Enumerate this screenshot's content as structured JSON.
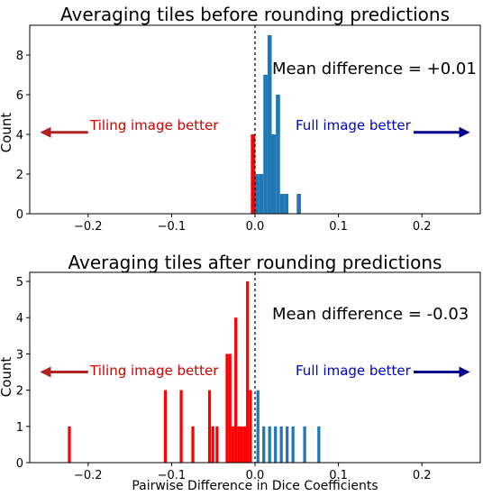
{
  "figure": {
    "xlabel": "Pairwise Difference in Dice Coefficients"
  },
  "colors": {
    "negative": "#ff0000",
    "positive": "#1f77b4",
    "tiling_text": "#cc0000",
    "full_text": "#0000cc",
    "tiling_arrow": "#b22222",
    "full_arrow": "#00008b"
  },
  "chart_data": [
    {
      "type": "bar",
      "title": "Averaging tiles before rounding predictions",
      "ylabel": "Count",
      "xlim": [
        -0.27,
        0.27
      ],
      "ylim": [
        0,
        9.5
      ],
      "xticks": [
        -0.2,
        -0.1,
        0.0,
        0.1,
        0.2
      ],
      "xtick_labels": [
        "−0.2",
        "−0.1",
        "0.0",
        "0.1",
        "0.2"
      ],
      "yticks": [
        0,
        2,
        4,
        6,
        8
      ],
      "ytick_labels": [
        "0",
        "2",
        "4",
        "6",
        "8"
      ],
      "bin_width": 0.005,
      "bars": [
        {
          "x": -0.0025,
          "count": 4,
          "side": "negative"
        },
        {
          "x": 0.0025,
          "count": 2,
          "side": "positive"
        },
        {
          "x": 0.0075,
          "count": 2,
          "side": "positive"
        },
        {
          "x": 0.0125,
          "count": 7,
          "side": "positive"
        },
        {
          "x": 0.0175,
          "count": 9,
          "side": "positive"
        },
        {
          "x": 0.0225,
          "count": 4,
          "side": "positive"
        },
        {
          "x": 0.0275,
          "count": 6,
          "side": "positive"
        },
        {
          "x": 0.0325,
          "count": 1,
          "side": "positive"
        },
        {
          "x": 0.0375,
          "count": 1,
          "side": "positive"
        },
        {
          "x": 0.0525,
          "count": 1,
          "side": "positive"
        }
      ],
      "annotation": "Mean difference = +0.01",
      "tiling_label": "Tiling image better",
      "full_label": "Full image better",
      "arrow_y": 4.1,
      "tiling_arrow_x": [
        -0.2,
        -0.255
      ],
      "full_arrow_x": [
        0.19,
        0.255
      ]
    },
    {
      "type": "bar",
      "title": "Averaging tiles after rounding predictions",
      "ylabel": "Count",
      "xlabel": "Pairwise Difference in Dice Coefficients",
      "xlim": [
        -0.27,
        0.27
      ],
      "ylim": [
        0,
        5.25
      ],
      "xticks": [
        -0.2,
        -0.1,
        0.0,
        0.1,
        0.2
      ],
      "xtick_labels": [
        "−0.2",
        "−0.1",
        "0.0",
        "0.1",
        "0.2"
      ],
      "yticks": [
        0,
        1,
        2,
        3,
        4,
        5
      ],
      "ytick_labels": [
        "0",
        "1",
        "2",
        "3",
        "4",
        "5"
      ],
      "bin_width": 0.0035,
      "bars": [
        {
          "x": -0.2225,
          "count": 1,
          "side": "negative"
        },
        {
          "x": -0.1075,
          "count": 2,
          "side": "negative"
        },
        {
          "x": -0.0885,
          "count": 2,
          "side": "negative"
        },
        {
          "x": -0.0745,
          "count": 1,
          "side": "negative"
        },
        {
          "x": -0.0545,
          "count": 2,
          "side": "negative"
        },
        {
          "x": -0.0505,
          "count": 1,
          "side": "negative"
        },
        {
          "x": -0.0455,
          "count": 1,
          "side": "negative"
        },
        {
          "x": -0.0335,
          "count": 3,
          "side": "negative"
        },
        {
          "x": -0.03,
          "count": 3,
          "side": "negative"
        },
        {
          "x": -0.0265,
          "count": 1,
          "side": "negative"
        },
        {
          "x": -0.023,
          "count": 4,
          "side": "negative"
        },
        {
          "x": -0.0195,
          "count": 1,
          "side": "negative"
        },
        {
          "x": -0.016,
          "count": 1,
          "side": "negative"
        },
        {
          "x": -0.0125,
          "count": 1,
          "side": "negative"
        },
        {
          "x": -0.009,
          "count": 5,
          "side": "negative"
        },
        {
          "x": -0.0055,
          "count": 2,
          "side": "negative"
        },
        {
          "x": 0.0035,
          "count": 2,
          "side": "positive"
        },
        {
          "x": 0.0105,
          "count": 1,
          "side": "positive"
        },
        {
          "x": 0.0175,
          "count": 1,
          "side": "positive"
        },
        {
          "x": 0.0245,
          "count": 1,
          "side": "positive"
        },
        {
          "x": 0.0315,
          "count": 1,
          "side": "positive"
        },
        {
          "x": 0.0385,
          "count": 1,
          "side": "positive"
        },
        {
          "x": 0.0455,
          "count": 1,
          "side": "positive"
        },
        {
          "x": 0.0595,
          "count": 1,
          "side": "positive"
        },
        {
          "x": 0.0765,
          "count": 1,
          "side": "positive"
        }
      ],
      "annotation": "Mean difference = -0.03",
      "tiling_label": "Tiling image better",
      "full_label": "Full image better",
      "arrow_y": 2.5,
      "tiling_arrow_x": [
        -0.2,
        -0.255
      ],
      "full_arrow_x": [
        0.19,
        0.255
      ]
    }
  ]
}
